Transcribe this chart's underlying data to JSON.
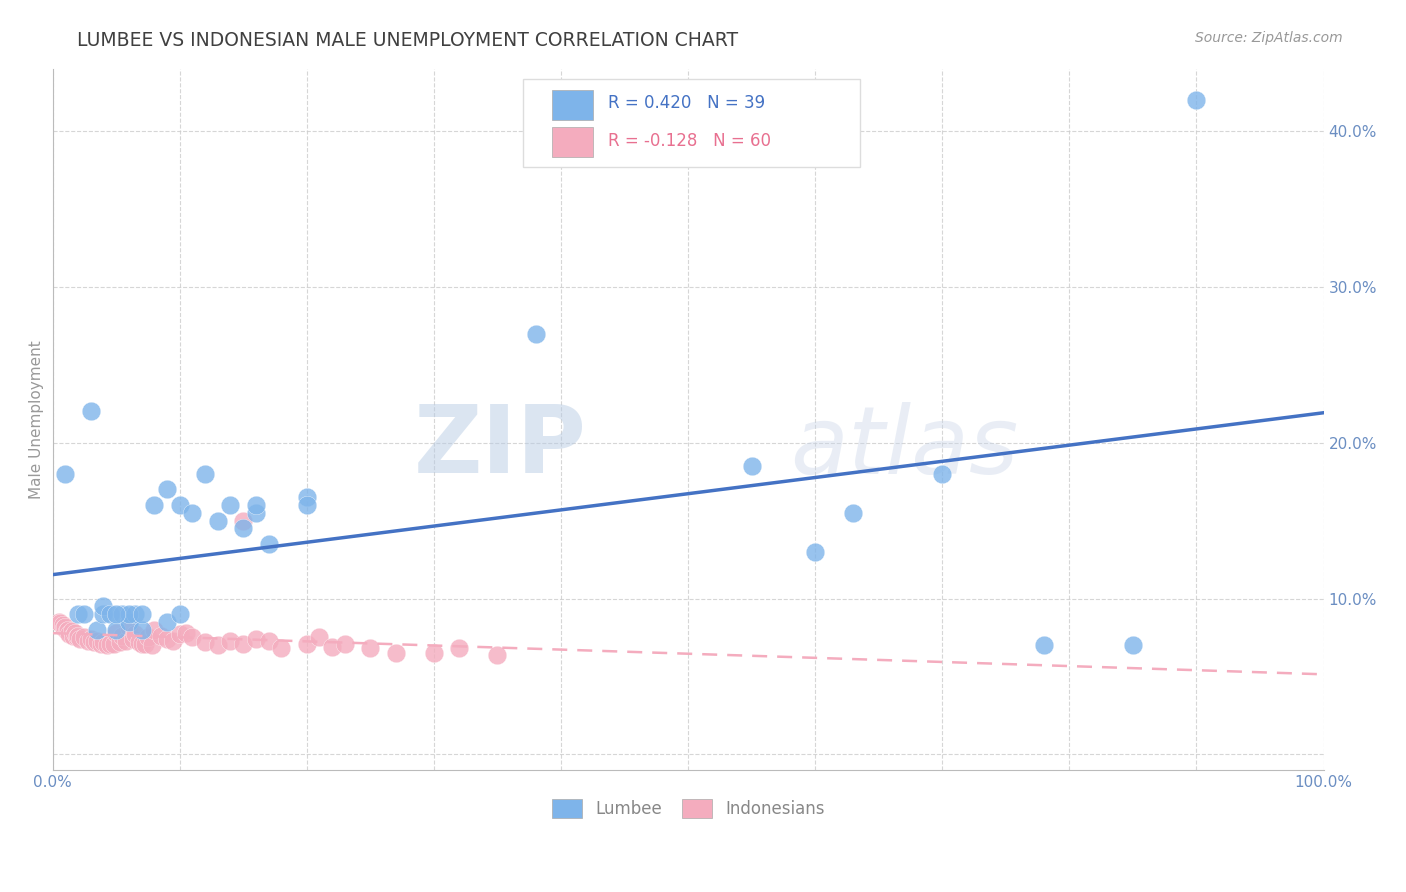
{
  "title": "LUMBEE VS INDONESIAN MALE UNEMPLOYMENT CORRELATION CHART",
  "source": "Source: ZipAtlas.com",
  "ylabel": "Male Unemployment",
  "xlim": [
    0.0,
    1.0
  ],
  "ylim": [
    -0.01,
    0.44
  ],
  "yticks": [
    0.0,
    0.1,
    0.2,
    0.3,
    0.4
  ],
  "ytick_labels_right": [
    "",
    "10.0%",
    "20.0%",
    "30.0%",
    "40.0%"
  ],
  "xtick_labels": [
    "0.0%",
    "",
    "",
    "",
    "",
    "",
    "",
    "",
    "",
    "",
    "100.0%"
  ],
  "lumbee_color": "#7EB4EA",
  "indonesian_color": "#F4ACBE",
  "lumbee_line_color": "#4472C4",
  "indonesian_line_color": "#F4ACBE",
  "lumbee_R": 0.42,
  "lumbee_N": 39,
  "indonesian_R": -0.128,
  "indonesian_N": 60,
  "lumbee_x": [
    0.01,
    0.02,
    0.025,
    0.03,
    0.035,
    0.04,
    0.04,
    0.045,
    0.05,
    0.055,
    0.06,
    0.065,
    0.07,
    0.08,
    0.09,
    0.09,
    0.1,
    0.1,
    0.11,
    0.12,
    0.13,
    0.14,
    0.15,
    0.16,
    0.16,
    0.17,
    0.2,
    0.2,
    0.38,
    0.55,
    0.6,
    0.63,
    0.7,
    0.78,
    0.85,
    0.9,
    0.06,
    0.07,
    0.05
  ],
  "lumbee_y": [
    0.18,
    0.09,
    0.09,
    0.22,
    0.08,
    0.09,
    0.095,
    0.09,
    0.08,
    0.09,
    0.085,
    0.09,
    0.08,
    0.16,
    0.17,
    0.085,
    0.16,
    0.09,
    0.155,
    0.18,
    0.15,
    0.16,
    0.145,
    0.155,
    0.16,
    0.135,
    0.165,
    0.16,
    0.27,
    0.185,
    0.13,
    0.155,
    0.18,
    0.07,
    0.07,
    0.42,
    0.09,
    0.09,
    0.09
  ],
  "indonesian_x": [
    0.005,
    0.006,
    0.008,
    0.009,
    0.01,
    0.011,
    0.012,
    0.013,
    0.015,
    0.016,
    0.018,
    0.019,
    0.02,
    0.022,
    0.025,
    0.028,
    0.03,
    0.033,
    0.035,
    0.038,
    0.04,
    0.043,
    0.045,
    0.048,
    0.05,
    0.053,
    0.055,
    0.058,
    0.06,
    0.063,
    0.065,
    0.068,
    0.07,
    0.073,
    0.075,
    0.078,
    0.08,
    0.085,
    0.09,
    0.095,
    0.1,
    0.105,
    0.11,
    0.12,
    0.13,
    0.14,
    0.15,
    0.16,
    0.17,
    0.18,
    0.2,
    0.21,
    0.22,
    0.23,
    0.25,
    0.27,
    0.3,
    0.32,
    0.35,
    0.15
  ],
  "indonesian_y": [
    0.085,
    0.084,
    0.083,
    0.081,
    0.082,
    0.079,
    0.08,
    0.077,
    0.079,
    0.076,
    0.078,
    0.075,
    0.076,
    0.074,
    0.075,
    0.073,
    0.074,
    0.072,
    0.073,
    0.071,
    0.072,
    0.07,
    0.071,
    0.071,
    0.078,
    0.072,
    0.076,
    0.073,
    0.082,
    0.074,
    0.077,
    0.072,
    0.071,
    0.071,
    0.075,
    0.07,
    0.08,
    0.076,
    0.074,
    0.073,
    0.077,
    0.078,
    0.075,
    0.072,
    0.07,
    0.073,
    0.071,
    0.074,
    0.073,
    0.068,
    0.071,
    0.075,
    0.069,
    0.071,
    0.068,
    0.065,
    0.065,
    0.068,
    0.064,
    0.15
  ],
  "watermark_zip": "ZIP",
  "watermark_atlas": "atlas",
  "background_color": "#ffffff",
  "grid_color": "#cccccc",
  "title_color": "#404040",
  "tick_label_color": "#6B8EC2"
}
